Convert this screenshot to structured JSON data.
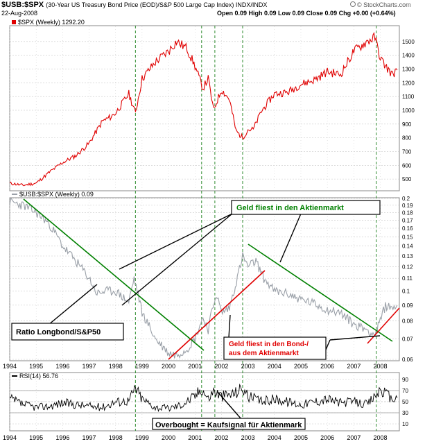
{
  "header": {
    "symbol": "$USB:$SPX",
    "description": "(30-Year US Treasury Bond Price (EOD)/S&P 500 Large Cap Index) INDX/INDX",
    "date": "22-Aug-2008",
    "ohlc": "Open 0.09  High 0.09  Low 0.09  Close 0.09  Chg +0.00 (+0.64%)",
    "source": "© StockCharts.com",
    "source_icon": "stockcharts-logo-icon"
  },
  "colors": {
    "spx": "#e00000",
    "ratio": "#9aa0a8",
    "green": "#008000",
    "red": "#e00000",
    "black": "#000000",
    "grid": "#c8c8c8",
    "vline": "#2e8b2e"
  },
  "chart_data": [
    {
      "type": "line",
      "panel": "top",
      "legend": "$SPX (Weekly) 1292.20",
      "ylim": [
        430,
        1600
      ],
      "y_ticks": [
        1500,
        1400,
        1300,
        1200,
        1100,
        1000,
        900,
        800,
        700,
        600,
        500
      ],
      "series": [
        {
          "name": "$SPX (Weekly) 1292.20",
          "x": [
            1994.0,
            1994.5,
            1995.0,
            1995.5,
            1996.0,
            1996.5,
            1997.0,
            1997.5,
            1997.8,
            1998.0,
            1998.5,
            1998.75,
            1999.0,
            1999.5,
            2000.0,
            2000.3,
            2000.7,
            2001.0,
            2001.3,
            2001.5,
            2001.7,
            2002.0,
            2002.3,
            2002.55,
            2002.8,
            2003.0,
            2003.2,
            2003.5,
            2004.0,
            2004.5,
            2005.0,
            2005.5,
            2006.0,
            2006.5,
            2007.0,
            2007.5,
            2007.8,
            2008.0,
            2008.2,
            2008.45,
            2008.64
          ],
          "values": [
            470,
            455,
            470,
            550,
            620,
            670,
            760,
            920,
            950,
            980,
            1120,
            980,
            1230,
            1350,
            1430,
            1500,
            1450,
            1320,
            1160,
            1230,
            1000,
            1150,
            1080,
            850,
            800,
            860,
            860,
            990,
            1120,
            1130,
            1190,
            1220,
            1280,
            1260,
            1430,
            1500,
            1530,
            1380,
            1320,
            1260,
            1292
          ]
        }
      ]
    },
    {
      "type": "line",
      "panel": "middle",
      "legend": "$USB:$SPX (Weekly) 0.09",
      "ylim": [
        0.06,
        0.2
      ],
      "y_scale": "log",
      "y_ticks": [
        0.2,
        0.19,
        0.18,
        0.17,
        0.16,
        0.15,
        0.14,
        0.13,
        0.12,
        0.11,
        0.1,
        0.09,
        0.08,
        0.07,
        0.06
      ],
      "x_ticks": [
        "1994",
        "1995",
        "1996",
        "1997",
        "1998",
        "1999",
        "2000",
        "2001",
        "2002",
        "2003",
        "2004",
        "2005",
        "2006",
        "2007",
        "2008"
      ],
      "series": [
        {
          "name": "$USB:$SPX (Weekly) 0.09",
          "x": [
            1994.0,
            1994.5,
            1995.0,
            1995.5,
            1996.0,
            1996.5,
            1997.0,
            1997.3,
            1997.6,
            1998.0,
            1998.5,
            1998.7,
            1999.0,
            1999.5,
            2000.0,
            2000.3,
            2000.7,
            2001.0,
            2001.3,
            2001.5,
            2001.8,
            2002.0,
            2002.3,
            2002.6,
            2002.8,
            2003.0,
            2003.3,
            2003.6,
            2004.0,
            2004.5,
            2005.0,
            2005.5,
            2006.0,
            2006.5,
            2007.0,
            2007.5,
            2007.8,
            2008.0,
            2008.2,
            2008.4,
            2008.64
          ],
          "values": [
            0.195,
            0.19,
            0.18,
            0.165,
            0.14,
            0.125,
            0.11,
            0.098,
            0.1,
            0.1,
            0.092,
            0.11,
            0.085,
            0.07,
            0.063,
            0.062,
            0.065,
            0.07,
            0.082,
            0.075,
            0.098,
            0.085,
            0.088,
            0.11,
            0.13,
            0.12,
            0.125,
            0.11,
            0.1,
            0.098,
            0.094,
            0.091,
            0.087,
            0.085,
            0.078,
            0.075,
            0.072,
            0.08,
            0.09,
            0.088,
            0.09
          ]
        }
      ],
      "annotations": [
        {
          "text": "Geld fliest in den Aktienmarkt",
          "position": "top-right"
        },
        {
          "text": "Ratio Longbond/S&P50",
          "position": "bottom-left"
        },
        {
          "text": "Geld fliest in den Bond-/\naus dem Aktienmarkt",
          "position": "bottom-center"
        }
      ]
    },
    {
      "type": "line",
      "panel": "bottom",
      "legend": "RSI(14) 56.76",
      "ylim": [
        0,
        100
      ],
      "y_ticks": [
        90,
        70,
        50,
        30,
        10
      ],
      "series": [
        {
          "name": "RSI(14) 56.76",
          "x": [
            1994.0,
            1994.5,
            1995.0,
            1995.5,
            1996.0,
            1996.5,
            1997.0,
            1997.5,
            1998.0,
            1998.5,
            1998.75,
            1999.0,
            1999.5,
            2000.0,
            2000.5,
            2001.0,
            2001.25,
            2001.5,
            2001.7,
            2002.0,
            2002.5,
            2002.8,
            2003.0,
            2003.5,
            2004.0,
            2004.5,
            2005.0,
            2005.5,
            2006.0,
            2006.5,
            2007.0,
            2007.5,
            2007.8,
            2008.0,
            2008.2,
            2008.4,
            2008.64
          ],
          "values": [
            55,
            45,
            40,
            42,
            48,
            45,
            42,
            40,
            50,
            52,
            75,
            55,
            40,
            38,
            45,
            60,
            75,
            55,
            70,
            60,
            65,
            75,
            60,
            50,
            55,
            50,
            45,
            50,
            55,
            48,
            50,
            45,
            60,
            72,
            65,
            55,
            56.76
          ]
        }
      ],
      "annotations": [
        {
          "text": "Overbought = Kaufsignal für Aktienmark",
          "position": "bottom-center"
        }
      ]
    }
  ]
}
